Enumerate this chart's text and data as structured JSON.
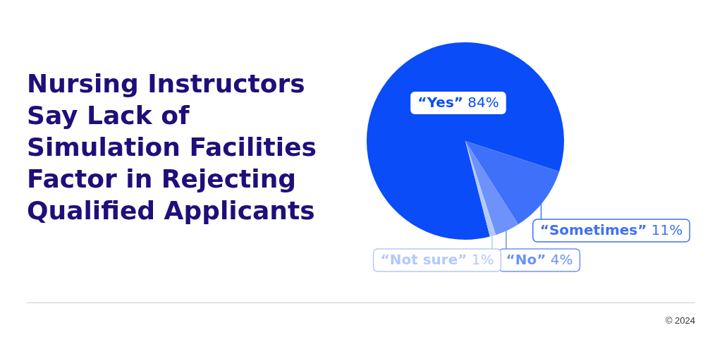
{
  "chart_data": {
    "type": "pie",
    "title": "Nursing Instructors Say Lack of Simulation Facilities Factor in Rejecting Qualified Applicants",
    "categories": [
      "“Yes”",
      "“Sometimes”",
      "“No”",
      "“Not sure”"
    ],
    "values": [
      84,
      11,
      4,
      1
    ],
    "colors": [
      "#0a4cf7",
      "#3f70fa",
      "#6d92fb",
      "#b4c8fd"
    ],
    "value_labels": [
      "84%",
      "11%",
      "4%",
      "1%"
    ],
    "legend": false,
    "annotations": [
      "© 2024"
    ]
  }
}
